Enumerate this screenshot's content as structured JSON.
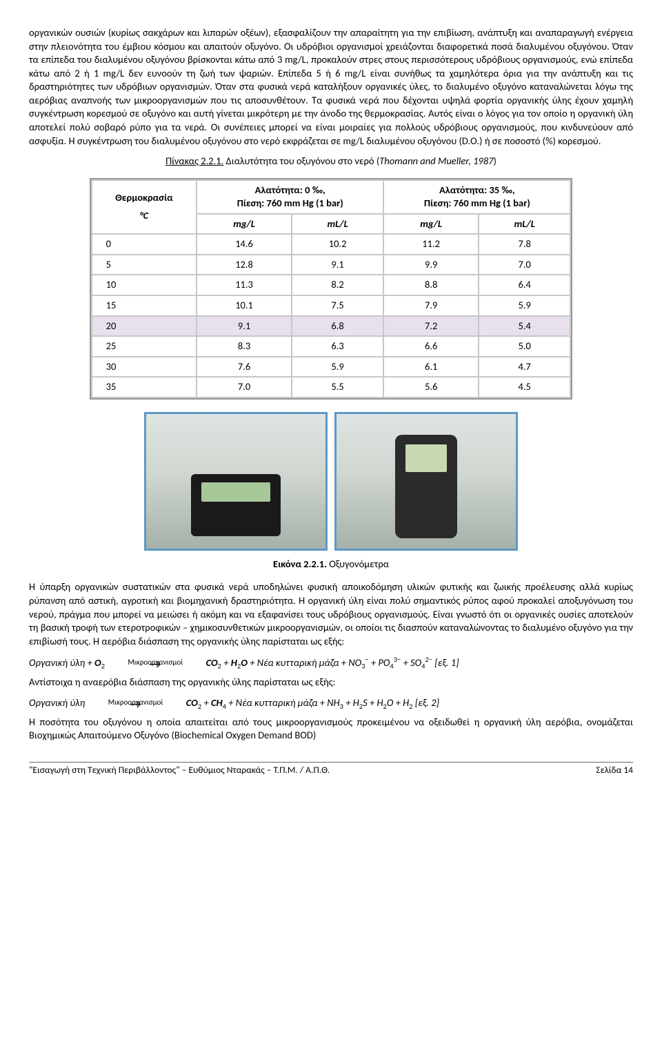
{
  "paragraphs": {
    "p1": "οργανικών ουσιών (κυρίως σακχάρων και λιπαρών οξέων), εξασφαλίζουν την απαραίτητη για την επιβίωση, ανάπτυξη και αναπαραγωγή ενέργεια στην πλειονότητα του έμβιου κόσμου και απαιτούν οξυγόνο. Οι υδρόβιοι οργανισμοί χρειάζονται διαφορετικά ποσά διαλυμένου οξυγόνου. Όταν τα επίπεδα του διαλυμένου οξυγόνου βρίσκονται κάτω από 3 mg/L, προκαλούν στρες στους περισσότερους υδρόβιους οργανισμούς, ενώ επίπεδα κάτω από 2 ή 1 mg/L δεν ευνοούν τη ζωή των ψαριών. Επίπεδα 5 ή 6 mg/L είναι συνήθως τα χαμηλότερα όρια για την ανάπτυξη και τις δραστηριότητες των υδρόβιων οργανισμών. Όταν στα φυσικά νερά καταλήξουν οργανικές ύλες, το διαλυμένο οξυγόνο καταναλώνεται λόγω της αερόβιας αναπνοής των μικροοργανισμών που τις αποσυνθέτουν. Τα φυσικά νερά που δέχονται υψηλά φορτία οργανικής ύλης έχουν χαμηλή συγκέντρωση κορεσμού σε οξυγόνο και αυτή γίνεται μικρότερη με την άνοδο της θερμοκρασίας. Αυτός είναι ο λόγος για τον οποίο η οργανική ύλη αποτελεί πολύ σοβαρό ρύπο για τα νερά. Οι συνέπειες μπορεί να είναι μοιραίες για πολλούς υδρόβιους οργανισμούς, που κινδυνεύουν από ασφυξία. Η συγκέντρωση του διαλυμένου οξυγόνου στο νερό εκφράζεται σε mg/L διαλυμένου οξυγόνου (D.O.) ή σε ποσοστό (%) κορεσμού.",
    "p2": "Η ύπαρξη οργανικών συστατικών στα φυσικά νερά υποδηλώνει φυσική αποικοδόμηση υλικών φυτικής και ζωικής προέλευσης αλλά κυρίως ρύπανση από αστική, αγροτική και βιομηχανική δραστηριότητα. Η οργανική ύλη είναι πολύ σημαντικός ρύπος αφού προκαλεί αποξυγόνωση του νερού, πράγμα που μπορεί να μειώσει ή ακόμη και να εξαφανίσει τους υδρόβιους οργανισμούς. Είναι γνωστό ότι οι οργανικές ουσίες αποτελούν τη βασική τροφή των ετεροτροφικών – χημικοσυνθετικών μικροοργανισμών, οι οποίοι τις διασπούν καταναλώνοντας το διαλυμένο οξυγόνο για την επιβίωσή τους. Η αερόβια διάσπαση της οργανικής ύλης παρίσταται ως εξής:",
    "p3": "Αντίστοιχα η αναερόβια διάσπαση της οργανικής ύλης παρίσταται ως εξής:",
    "p4": "Η ποσότητα του οξυγόνου η οποία απαιτείται από τους μικροοργανισμούς προκειμένου να οξειδωθεί η οργανική ύλη αερόβια, ονομάζεται Βιοχημικώς Απαιτούμενο Οξυγόνο (Biochemical Oxygen Demand BOD)"
  },
  "table": {
    "caption_label": "Πίνακας 2.2.1.",
    "caption_text": " Διαλυτότητα του οξυγόνου στο νερό (",
    "caption_ref": "Thomann and Mueller, 1987",
    "caption_close": ")",
    "h_temp": "Θερμοκρασία",
    "h_temp_unit": "°C",
    "h_sal0": "Αλατότητα: 0 ‰,",
    "h_sal35": "Αλατότητα: 35 ‰,",
    "h_press": "Πίεση: 760 mm Hg (1 bar)",
    "h_mgL": "mg/L",
    "h_mlL": "mL/L",
    "rows": [
      [
        "0",
        "14.6",
        "10.2",
        "11.2",
        "7.8"
      ],
      [
        "5",
        "12.8",
        "9.1",
        "9.9",
        "7.0"
      ],
      [
        "10",
        "11.3",
        "8.2",
        "8.8",
        "6.4"
      ],
      [
        "15",
        "10.1",
        "7.5",
        "7.9",
        "5.9"
      ],
      [
        "20",
        "9.1",
        "6.8",
        "7.2",
        "5.4"
      ],
      [
        "25",
        "8.3",
        "6.3",
        "6.6",
        "5.0"
      ],
      [
        "30",
        "7.6",
        "5.9",
        "6.1",
        "4.7"
      ],
      [
        "35",
        "7.0",
        "5.5",
        "5.6",
        "4.5"
      ]
    ]
  },
  "fig": {
    "label": "Εικόνα 2.2.1.",
    "text": " Οξυγονόμετρα"
  },
  "eq": {
    "organic": "Οργανική ύλη",
    "plus": " + ",
    "micro": "Μικροοργανισμοί",
    "rhs1": " + Νέα κυτταρική μάζα + ",
    "tail1": "   [εξ. 1]",
    "rhs2": " + Νέα κυτταρική μάζα + ",
    "tail2": "   [εξ. 2]"
  },
  "footer": {
    "left": "\"Εισαγωγή στη Τεχνική Περιβάλλοντος\" – Ευθύμιος Νταρακάς – Τ.Π.Μ. / Α.Π.Θ.",
    "right": "Σελίδα  14"
  }
}
